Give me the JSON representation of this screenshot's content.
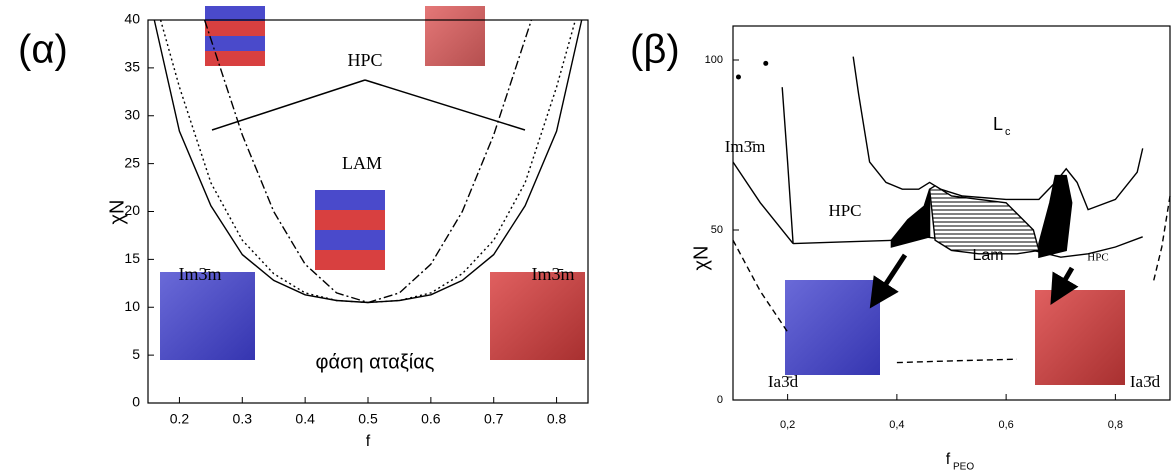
{
  "chart_data": [
    {
      "type": "line",
      "panel": "(α)",
      "xlabel": "f",
      "ylabel": "χN",
      "xlim": [
        0.15,
        0.85
      ],
      "ylim": [
        0,
        40
      ],
      "xticks": [
        0.2,
        0.3,
        0.4,
        0.5,
        0.6,
        0.7,
        0.8
      ],
      "yticks": [
        0,
        5,
        10,
        15,
        20,
        25,
        30,
        35,
        40
      ],
      "annotations": [
        {
          "text": "HPC"
        },
        {
          "text": "LAM"
        },
        {
          "text": "Im3̄m"
        },
        {
          "text": "Im3̄m"
        },
        {
          "text": "φάση αταξίας"
        }
      ],
      "series": [
        {
          "color": "#000",
          "dash": "solid",
          "x": [
            0.16,
            0.2,
            0.25,
            0.3,
            0.35,
            0.4,
            0.45,
            0.5,
            0.55,
            0.6,
            0.65,
            0.7,
            0.75,
            0.8,
            0.84
          ],
          "values": [
            40,
            28.4,
            20.6,
            15.5,
            12.8,
            11.3,
            10.7,
            10.5,
            10.7,
            11.3,
            12.8,
            15.5,
            20.6,
            28.4,
            40
          ]
        },
        {
          "color": "#000",
          "dash": "dotted",
          "x": [
            0.17,
            0.2,
            0.25,
            0.3,
            0.35,
            0.4,
            0.45,
            0.5,
            0.55,
            0.6,
            0.65,
            0.7,
            0.75,
            0.8,
            0.83
          ],
          "values": [
            40,
            33,
            23,
            17,
            13.5,
            11.5,
            10.7,
            10.5,
            10.7,
            11.5,
            13.5,
            17,
            23,
            33,
            40
          ]
        },
        {
          "color": "#000",
          "dash": "dashdot",
          "x": [
            0.24,
            0.3,
            0.35,
            0.4,
            0.45,
            0.5,
            0.55,
            0.6,
            0.65,
            0.7,
            0.76
          ],
          "values": [
            40,
            28,
            20,
            14.5,
            11.5,
            10.5,
            11.5,
            14.5,
            20,
            28,
            40
          ]
        }
      ]
    },
    {
      "type": "line",
      "panel": "(β)",
      "xlabel": "f",
      "xlabel_sub": "PEO",
      "ylabel": "χN",
      "xlim": [
        0.1,
        0.9
      ],
      "ylim": [
        0,
        110
      ],
      "xticks": [
        {
          "value": 0.2,
          "label": "0,2"
        },
        {
          "value": 0.4,
          "label": "0,4"
        },
        {
          "value": 0.6,
          "label": "0,6"
        },
        {
          "value": 0.8,
          "label": "0,8"
        }
      ],
      "yticks": [
        0,
        50,
        100
      ],
      "annotations": [
        {
          "text": "Im3̄m"
        },
        {
          "text": "HPC"
        },
        {
          "text": "L",
          "sub": "c"
        },
        {
          "text": "Lam"
        },
        {
          "text": "HPC"
        },
        {
          "text": "Ia3̄d"
        },
        {
          "text": "Ia3̄d"
        }
      ],
      "series": [
        {
          "color": "#000",
          "dash": "solid",
          "x": [
            0.1,
            0.15,
            0.21
          ],
          "values": [
            70,
            58,
            46
          ]
        },
        {
          "color": "#000",
          "dash": "solid",
          "x": [
            0.19,
            0.2,
            0.21
          ],
          "values": [
            92,
            70,
            46
          ]
        },
        {
          "color": "#000",
          "dash": "solid",
          "x": [
            0.21,
            0.3,
            0.4,
            0.45,
            0.55,
            0.65,
            0.7,
            0.75,
            0.8,
            0.85
          ],
          "values": [
            46,
            46.5,
            47,
            48,
            46,
            44,
            42,
            43,
            45,
            48
          ]
        },
        {
          "color": "#000",
          "dash": "solid",
          "x": [
            0.32,
            0.33,
            0.35,
            0.38,
            0.41,
            0.44,
            0.46,
            0.48,
            0.52,
            0.6,
            0.66,
            0.69,
            0.71,
            0.73,
            0.75,
            0.8,
            0.84,
            0.85
          ],
          "values": [
            101,
            90,
            70,
            64,
            62,
            62,
            64,
            62,
            60,
            59,
            59,
            64,
            68,
            64,
            56,
            59,
            67,
            74
          ]
        },
        {
          "color": "#000",
          "dash": "dashed",
          "x": [
            0.9,
            0.885,
            0.87
          ],
          "values": [
            60,
            45,
            35
          ]
        },
        {
          "color": "#000",
          "dash": "dashed",
          "x": [
            0.1,
            0.15,
            0.2
          ],
          "values": [
            47,
            32,
            20
          ]
        },
        {
          "color": "#000",
          "dash": "dashed",
          "x": [
            0.4,
            0.5,
            0.62
          ],
          "values": [
            11,
            11.5,
            12
          ]
        },
        {
          "color": "#000",
          "dash": "solid",
          "fill": "#000",
          "x": [
            0.39,
            0.42,
            0.45,
            0.46,
            0.46,
            0.39
          ],
          "values": [
            47,
            53,
            57,
            62,
            48,
            45
          ]
        },
        {
          "color": "#000",
          "dash": "solid",
          "fill": "#000",
          "x": [
            0.66,
            0.68,
            0.69,
            0.71,
            0.72,
            0.71,
            0.66
          ],
          "values": [
            46,
            58,
            66,
            66,
            58,
            44,
            42
          ]
        },
        {
          "color": "#000",
          "dash": "solid",
          "fill": "hatch",
          "x": [
            0.46,
            0.47,
            0.5,
            0.6,
            0.65,
            0.66,
            0.62,
            0.55,
            0.5,
            0.47
          ],
          "values": [
            62,
            63,
            60,
            58,
            50,
            44,
            43,
            43,
            44,
            47
          ]
        },
        {
          "color": "#000",
          "style": "points",
          "x": [
            0.11,
            0.16
          ],
          "values": [
            95,
            99
          ]
        }
      ]
    }
  ]
}
